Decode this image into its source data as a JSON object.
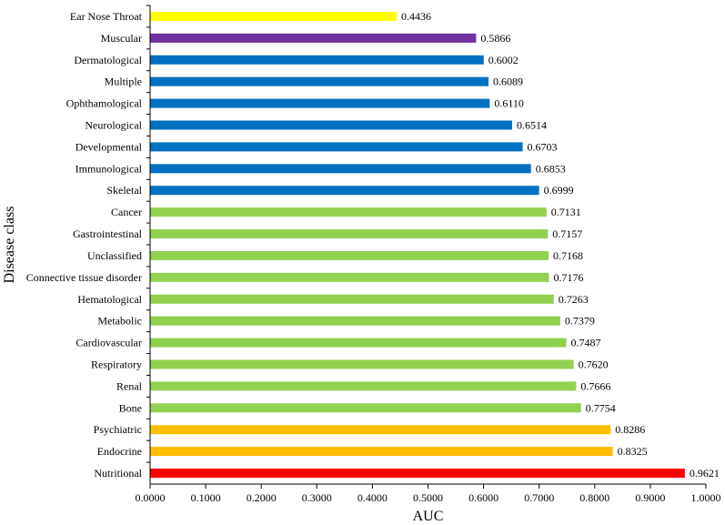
{
  "chart_data": {
    "type": "bar",
    "orientation": "horizontal",
    "title": "",
    "xlabel": "AUC",
    "ylabel": "Disease class",
    "xlim": [
      0,
      1
    ],
    "x_ticks": [
      "0.0000",
      "0.1000",
      "0.2000",
      "0.3000",
      "0.4000",
      "0.5000",
      "0.6000",
      "0.7000",
      "0.8000",
      "0.9000",
      "1.0000"
    ],
    "grid": false,
    "legend": "none",
    "bars": [
      {
        "category": "Ear Nose Throat",
        "value": 0.4436,
        "label": "0.4436",
        "color": "#ffff00"
      },
      {
        "category": "Muscular",
        "value": 0.5866,
        "label": "0.5866",
        "color": "#7030a0"
      },
      {
        "category": "Dermatological",
        "value": 0.6002,
        "label": "0.6002",
        "color": "#0070c0"
      },
      {
        "category": "Multiple",
        "value": 0.6089,
        "label": "0.6089",
        "color": "#0070c0"
      },
      {
        "category": "Ophthamological",
        "value": 0.611,
        "label": "0.6110",
        "color": "#0070c0"
      },
      {
        "category": "Neurological",
        "value": 0.6514,
        "label": "0.6514",
        "color": "#0070c0"
      },
      {
        "category": "Developmental",
        "value": 0.6703,
        "label": "0.6703",
        "color": "#0070c0"
      },
      {
        "category": "Immunological",
        "value": 0.6853,
        "label": "0.6853",
        "color": "#0070c0"
      },
      {
        "category": "Skeletal",
        "value": 0.6999,
        "label": "0.6999",
        "color": "#0070c0"
      },
      {
        "category": "Cancer",
        "value": 0.7131,
        "label": "0.7131",
        "color": "#92d050"
      },
      {
        "category": "Gastrointestinal",
        "value": 0.7157,
        "label": "0.7157",
        "color": "#92d050"
      },
      {
        "category": "Unclassified",
        "value": 0.7168,
        "label": "0.7168",
        "color": "#92d050"
      },
      {
        "category": "Connective tissue disorder",
        "value": 0.7176,
        "label": "0.7176",
        "color": "#92d050"
      },
      {
        "category": "Hematological",
        "value": 0.7263,
        "label": "0.7263",
        "color": "#92d050"
      },
      {
        "category": "Metabolic",
        "value": 0.7379,
        "label": "0.7379",
        "color": "#92d050"
      },
      {
        "category": "Cardiovascular",
        "value": 0.7487,
        "label": "0.7487",
        "color": "#92d050"
      },
      {
        "category": "Respiratory",
        "value": 0.762,
        "label": "0.7620",
        "color": "#92d050"
      },
      {
        "category": "Renal",
        "value": 0.7666,
        "label": "0.7666",
        "color": "#92d050"
      },
      {
        "category": "Bone",
        "value": 0.7754,
        "label": "0.7754",
        "color": "#92d050"
      },
      {
        "category": "Psychiatric",
        "value": 0.8286,
        "label": "0.8286",
        "color": "#ffc000"
      },
      {
        "category": "Endocrine",
        "value": 0.8325,
        "label": "0.8325",
        "color": "#ffc000"
      },
      {
        "category": "Nutritional",
        "value": 0.9621,
        "label": "0.9621",
        "color": "#ff0000"
      }
    ]
  }
}
